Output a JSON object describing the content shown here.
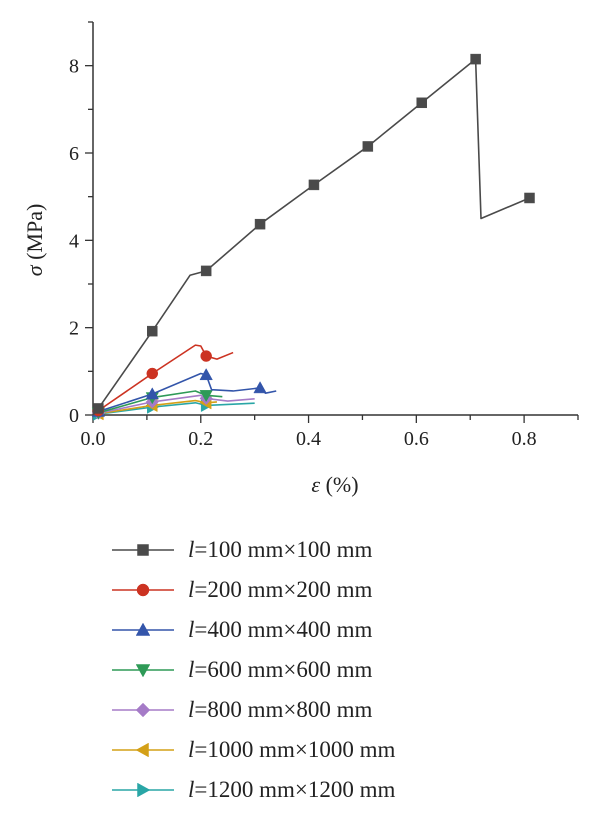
{
  "chart_data": {
    "type": "line",
    "xlabel_symbol": "ε",
    "xlabel_unit": " (%)",
    "ylabel_symbol": "σ",
    "ylabel_unit": " (MPa)",
    "xlim": [
      0,
      0.9
    ],
    "ylim": [
      0,
      9
    ],
    "x_ticks": [
      "0.0",
      "0.2",
      "0.4",
      "0.6",
      "0.8"
    ],
    "x_tick_values": [
      0,
      0.2,
      0.4,
      0.6,
      0.8
    ],
    "y_ticks": [
      "0",
      "2",
      "4",
      "6",
      "8"
    ],
    "y_tick_values": [
      0,
      2,
      4,
      6,
      8
    ],
    "grid": false,
    "legend_placement": "below",
    "series": [
      {
        "legend_var": "l",
        "legend_rest": "=100 mm×100 mm",
        "color": "#4a4a4a",
        "marker": "square",
        "x": [
          0,
          0.01,
          0.11,
          0.18,
          0.21,
          0.31,
          0.41,
          0.51,
          0.61,
          0.71,
          0.72,
          0.81
        ],
        "y": [
          0,
          0.15,
          1.92,
          3.2,
          3.3,
          4.37,
          5.27,
          6.15,
          7.15,
          8.15,
          4.5,
          4.97
        ],
        "marker_x": [
          0.01,
          0.11,
          0.21,
          0.31,
          0.41,
          0.51,
          0.61,
          0.71,
          0.81
        ],
        "marker_y": [
          0.15,
          1.92,
          3.3,
          4.37,
          5.27,
          6.15,
          7.15,
          8.15,
          4.97
        ]
      },
      {
        "legend_var": "l",
        "legend_rest": "=200 mm×200 mm",
        "color": "#cc3322",
        "marker": "circle",
        "x": [
          0,
          0.01,
          0.11,
          0.19,
          0.2,
          0.21,
          0.23,
          0.26
        ],
        "y": [
          0,
          0.1,
          0.95,
          1.6,
          1.58,
          1.35,
          1.28,
          1.43
        ],
        "marker_x": [
          0.01,
          0.11,
          0.21
        ],
        "marker_y": [
          0.1,
          0.95,
          1.35
        ]
      },
      {
        "legend_var": "l",
        "legend_rest": "=400 mm×400 mm",
        "color": "#3355aa",
        "marker": "triangle-up",
        "x": [
          0,
          0.01,
          0.11,
          0.2,
          0.21,
          0.22,
          0.26,
          0.31,
          0.32,
          0.34
        ],
        "y": [
          0,
          0.08,
          0.48,
          0.95,
          0.92,
          0.58,
          0.55,
          0.62,
          0.5,
          0.55
        ],
        "marker_x": [
          0.01,
          0.11,
          0.21,
          0.31
        ],
        "marker_y": [
          0.08,
          0.48,
          0.92,
          0.62
        ]
      },
      {
        "legend_var": "l",
        "legend_rest": "=600 mm×600 mm",
        "color": "#2e9a57",
        "marker": "triangle-down",
        "x": [
          0,
          0.01,
          0.11,
          0.19,
          0.21,
          0.24
        ],
        "y": [
          0,
          0.05,
          0.4,
          0.55,
          0.45,
          0.42
        ],
        "marker_x": [
          0.01,
          0.11,
          0.21
        ],
        "marker_y": [
          0.05,
          0.4,
          0.45
        ]
      },
      {
        "legend_var": "l",
        "legend_rest": "=800 mm×800 mm",
        "color": "#a57bc7",
        "marker": "diamond",
        "x": [
          0,
          0.01,
          0.11,
          0.2,
          0.21,
          0.25,
          0.3
        ],
        "y": [
          0,
          0.04,
          0.3,
          0.45,
          0.38,
          0.32,
          0.37
        ],
        "marker_x": [
          0.01,
          0.11,
          0.21
        ],
        "marker_y": [
          0.04,
          0.3,
          0.38
        ]
      },
      {
        "legend_var": "l",
        "legend_rest": "=1000 mm×1000 mm",
        "color": "#d4a017",
        "marker": "triangle-left",
        "x": [
          0,
          0.01,
          0.11,
          0.19,
          0.21,
          0.23
        ],
        "y": [
          0,
          0.03,
          0.22,
          0.33,
          0.28,
          0.3
        ],
        "marker_x": [
          0.01,
          0.11,
          0.21
        ],
        "marker_y": [
          0.03,
          0.22,
          0.28
        ]
      },
      {
        "legend_var": "l",
        "legend_rest": "=1200 mm×1200 mm",
        "color": "#29a6a6",
        "marker": "triangle-right",
        "x": [
          0,
          0.01,
          0.11,
          0.19,
          0.21,
          0.3
        ],
        "y": [
          0,
          0.02,
          0.18,
          0.28,
          0.22,
          0.27
        ],
        "marker_x": [
          0.01,
          0.11,
          0.21
        ],
        "marker_y": [
          0.02,
          0.18,
          0.22
        ]
      }
    ]
  }
}
